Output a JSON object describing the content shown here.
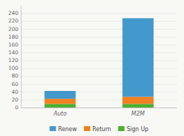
{
  "chart_data": {
    "type": "bar",
    "stacked": true,
    "categories": [
      "Auto",
      "M2M"
    ],
    "series": [
      {
        "name": "Sign Up",
        "color": "#4caf32",
        "values": [
          10,
          10
        ]
      },
      {
        "name": "Return",
        "color": "#f08020",
        "values": [
          13,
          18
        ]
      },
      {
        "name": "Renew",
        "color": "#4499cc",
        "values": [
          20,
          200
        ]
      }
    ],
    "ylim": [
      0,
      260
    ],
    "yticks": [
      0,
      20,
      40,
      60,
      80,
      100,
      120,
      140,
      160,
      180,
      200,
      220,
      240
    ],
    "grid": true,
    "legend": "bottom"
  }
}
